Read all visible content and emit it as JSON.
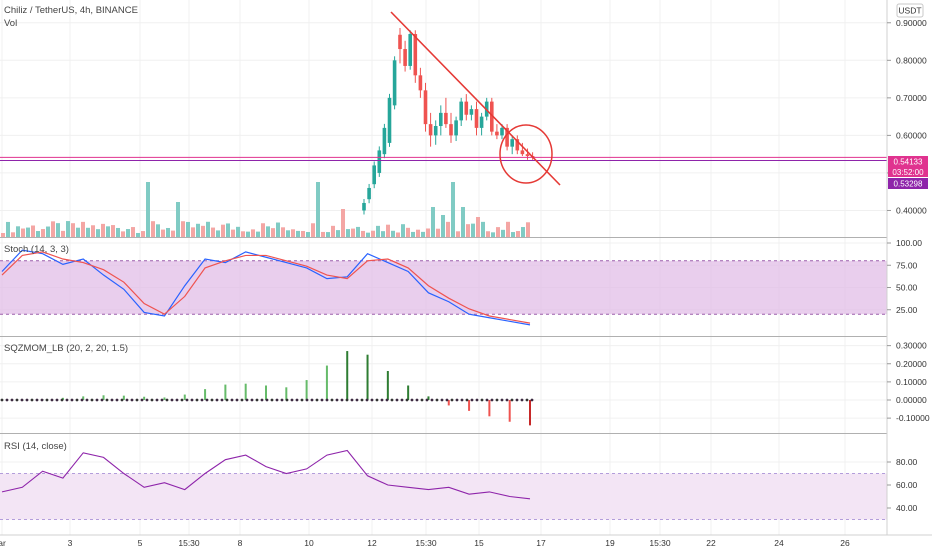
{
  "header": {
    "symbol_title": "Chiliz / TetherUS, 4h, BINANCE",
    "vol_label": "Vol",
    "currency_button": "USDT"
  },
  "colors": {
    "up": "#26a69a",
    "down": "#ef5350",
    "vol_up": "#80cbc4",
    "vol_down": "#f4a6a4",
    "trendline": "#e53935",
    "price_line": "#e0338f",
    "support_line": "#8e24aa",
    "stoch_k": "#2962ff",
    "stoch_d": "#ef5350",
    "stoch_band": "#e1bee7",
    "rsi_line": "#8e24aa",
    "rsi_band": "#f3e5f5"
  },
  "panes": {
    "stoch_label": "Stoch (14, 3, 3)",
    "sqz_label": "SQZMOM_LB (20, 2, 20, 1.5)",
    "rsi_label": "RSI (14, close)"
  },
  "price_badges": {
    "last_price": "0.54133",
    "countdown": "03:52:00",
    "support_price": "0.53298"
  },
  "time_axis": [
    "ar",
    "3",
    "5",
    "15:30",
    "8",
    "10",
    "12",
    "15:30",
    "15",
    "17",
    "19",
    "15:30",
    "22",
    "24",
    "26"
  ],
  "chart_data": [
    {
      "type": "candlestick",
      "title": "Chiliz / TetherUS, 4h, BINANCE",
      "y_ticks": [
        0.4,
        0.5,
        0.6,
        0.7,
        0.8,
        0.9
      ],
      "y_tick_labels": [
        "0.40000",
        "0.50000",
        "0.60000",
        "0.70000",
        "0.80000",
        "0.90000"
      ],
      "ylim": [
        0.34,
        0.95
      ],
      "candles": [
        [
          0.868,
          0.886,
          0.792,
          0.83
        ],
        [
          0.83,
          0.852,
          0.77,
          0.785
        ],
        [
          0.785,
          0.88,
          0.775,
          0.87
        ],
        [
          0.87,
          0.88,
          0.74,
          0.76
        ],
        [
          0.76,
          0.78,
          0.7,
          0.72
        ],
        [
          0.72,
          0.74,
          0.61,
          0.63
        ],
        [
          0.63,
          0.66,
          0.57,
          0.6
        ],
        [
          0.6,
          0.64,
          0.575,
          0.625
        ],
        [
          0.625,
          0.68,
          0.6,
          0.66
        ],
        [
          0.66,
          0.7,
          0.62,
          0.63
        ],
        [
          0.63,
          0.66,
          0.58,
          0.6
        ],
        [
          0.6,
          0.65,
          0.585,
          0.64
        ],
        [
          0.64,
          0.7,
          0.625,
          0.69
        ],
        [
          0.69,
          0.71,
          0.64,
          0.655
        ],
        [
          0.655,
          0.68,
          0.64,
          0.67
        ],
        [
          0.67,
          0.69,
          0.6,
          0.62
        ],
        [
          0.62,
          0.66,
          0.6,
          0.65
        ],
        [
          0.65,
          0.7,
          0.64,
          0.69
        ],
        [
          0.69,
          0.7,
          0.6,
          0.61
        ],
        [
          0.61,
          0.63,
          0.59,
          0.6
        ],
        [
          0.6,
          0.63,
          0.59,
          0.62
        ],
        [
          0.62,
          0.63,
          0.56,
          0.57
        ],
        [
          0.57,
          0.6,
          0.55,
          0.59
        ],
        [
          0.59,
          0.6,
          0.55,
          0.56
        ],
        [
          0.56,
          0.58,
          0.545,
          0.55
        ],
        [
          0.55,
          0.565,
          0.535,
          0.545
        ],
        [
          0.545,
          0.555,
          0.535,
          0.541
        ]
      ],
      "volume": [
        8,
        12,
        10,
        20,
        14,
        18,
        9,
        16,
        22,
        12,
        9,
        14,
        11,
        8,
        12,
        7,
        10,
        9,
        13,
        8,
        7,
        9,
        6,
        8,
        5,
        6,
        4
      ]
    },
    {
      "type": "line",
      "title": "Stoch (14, 3, 3)",
      "y_ticks": [
        25,
        50,
        75,
        100
      ],
      "y_tick_labels": [
        "25.00",
        "50.00",
        "75.00",
        "100.00"
      ],
      "band": [
        20,
        80
      ],
      "ylim": [
        0,
        100
      ],
      "series": [
        {
          "name": "K",
          "values": [
            68,
            92,
            88,
            76,
            82,
            64,
            48,
            22,
            18,
            52,
            82,
            78,
            90,
            84,
            78,
            72,
            60,
            62,
            88,
            78,
            68,
            44,
            34,
            20,
            16,
            12,
            8
          ]
        },
        {
          "name": "D",
          "values": [
            64,
            86,
            90,
            82,
            78,
            70,
            56,
            32,
            20,
            40,
            72,
            80,
            86,
            86,
            80,
            74,
            64,
            60,
            80,
            82,
            72,
            52,
            38,
            26,
            18,
            14,
            10
          ]
        }
      ]
    },
    {
      "type": "bar",
      "title": "SQZMOM_LB (20, 2, 20, 1.5)",
      "y_ticks": [
        -0.1,
        0.0,
        0.1,
        0.2,
        0.3
      ],
      "y_tick_labels": [
        "-0.10000",
        "0.00000",
        "0.10000",
        "0.20000",
        "0.30000"
      ],
      "ylim": [
        -0.16,
        0.32
      ],
      "values": [
        0.0,
        0.0,
        0.004,
        0.012,
        0.02,
        0.026,
        0.024,
        0.018,
        0.014,
        0.03,
        0.06,
        0.085,
        0.09,
        0.08,
        0.07,
        0.11,
        0.19,
        0.27,
        0.25,
        0.16,
        0.08,
        0.02,
        -0.03,
        -0.06,
        -0.09,
        -0.12,
        -0.14
      ]
    },
    {
      "type": "line",
      "title": "RSI (14, close)",
      "y_ticks": [
        40,
        60,
        80
      ],
      "y_tick_labels": [
        "40.00",
        "60.00",
        "80.00"
      ],
      "band": [
        30,
        70
      ],
      "ylim": [
        20,
        100
      ],
      "series": [
        {
          "name": "RSI",
          "values": [
            54,
            58,
            72,
            66,
            88,
            84,
            70,
            58,
            62,
            56,
            70,
            82,
            86,
            76,
            70,
            74,
            86,
            90,
            68,
            60,
            58,
            56,
            58,
            52,
            54,
            50,
            48
          ]
        }
      ]
    }
  ]
}
